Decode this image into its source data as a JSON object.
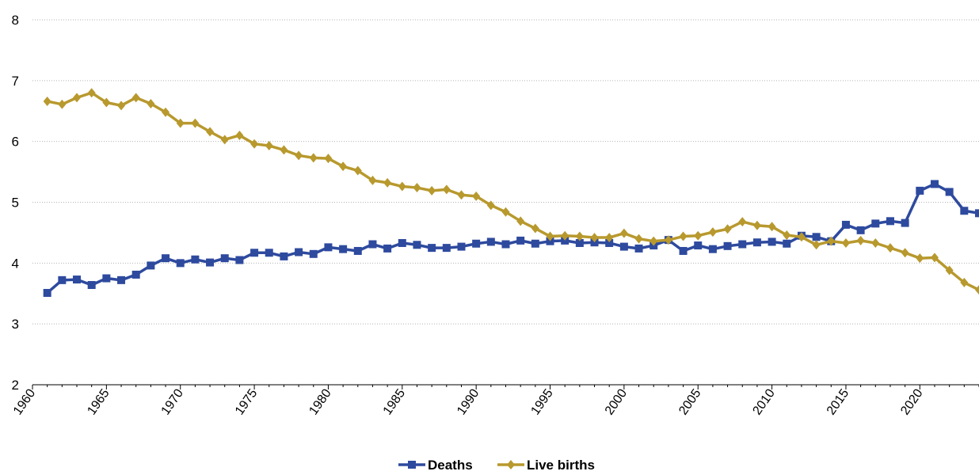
{
  "chart_data": {
    "type": "line",
    "title": "",
    "xlabel": "",
    "ylabel": "",
    "xlim": [
      1960,
      2024
    ],
    "ylim": [
      2,
      8
    ],
    "grid": "horizontal dotted",
    "legend_position": "bottom-center",
    "x_tick_labels": [
      "1960",
      "1965",
      "1970",
      "1975",
      "1980",
      "1985",
      "1990",
      "1995",
      "2000",
      "2005",
      "2010",
      "2015",
      "2020"
    ],
    "y_tick_labels": [
      "2",
      "3",
      "4",
      "5",
      "6",
      "7",
      "8"
    ],
    "x": [
      1961,
      1962,
      1963,
      1964,
      1965,
      1966,
      1967,
      1968,
      1969,
      1970,
      1971,
      1972,
      1973,
      1974,
      1975,
      1976,
      1977,
      1978,
      1979,
      1980,
      1981,
      1982,
      1983,
      1984,
      1985,
      1986,
      1987,
      1988,
      1989,
      1990,
      1991,
      1992,
      1993,
      1994,
      1995,
      1996,
      1997,
      1998,
      1999,
      2000,
      2001,
      2002,
      2003,
      2004,
      2005,
      2006,
      2007,
      2008,
      2009,
      2010,
      2011,
      2012,
      2013,
      2014,
      2015,
      2016,
      2017,
      2018,
      2019,
      2020,
      2021,
      2022,
      2023,
      2024
    ],
    "series": [
      {
        "name": "Deaths",
        "color": "#2E4A9E",
        "marker": "square",
        "values": [
          3.51,
          3.72,
          3.73,
          3.64,
          3.75,
          3.72,
          3.81,
          3.96,
          4.08,
          4.0,
          4.06,
          4.01,
          4.08,
          4.05,
          4.17,
          4.17,
          4.11,
          4.18,
          4.15,
          4.26,
          4.23,
          4.2,
          4.31,
          4.24,
          4.33,
          4.3,
          4.25,
          4.25,
          4.27,
          4.32,
          4.35,
          4.31,
          4.37,
          4.32,
          4.36,
          4.37,
          4.33,
          4.34,
          4.33,
          4.27,
          4.24,
          4.29,
          4.38,
          4.2,
          4.29,
          4.23,
          4.28,
          4.31,
          4.34,
          4.35,
          4.32,
          4.45,
          4.43,
          4.36,
          4.63,
          4.54,
          4.65,
          4.69,
          4.66,
          5.19,
          5.3,
          5.17,
          4.86,
          4.82
        ]
      },
      {
        "name": "Live births",
        "color": "#B8992E",
        "marker": "diamond",
        "values": [
          6.66,
          6.61,
          6.72,
          6.8,
          6.64,
          6.59,
          6.72,
          6.62,
          6.48,
          6.3,
          6.3,
          6.16,
          6.03,
          6.1,
          5.96,
          5.93,
          5.86,
          5.77,
          5.73,
          5.72,
          5.59,
          5.52,
          5.36,
          5.32,
          5.26,
          5.24,
          5.19,
          5.21,
          5.12,
          5.1,
          4.95,
          4.84,
          4.69,
          4.57,
          4.44,
          4.45,
          4.44,
          4.42,
          4.42,
          4.49,
          4.4,
          4.36,
          4.38,
          4.44,
          4.45,
          4.51,
          4.56,
          4.68,
          4.62,
          4.6,
          4.46,
          4.43,
          4.3,
          4.36,
          4.33,
          4.37,
          4.33,
          4.25,
          4.17,
          4.08,
          4.09,
          3.88,
          3.68,
          3.56
        ]
      }
    ]
  }
}
